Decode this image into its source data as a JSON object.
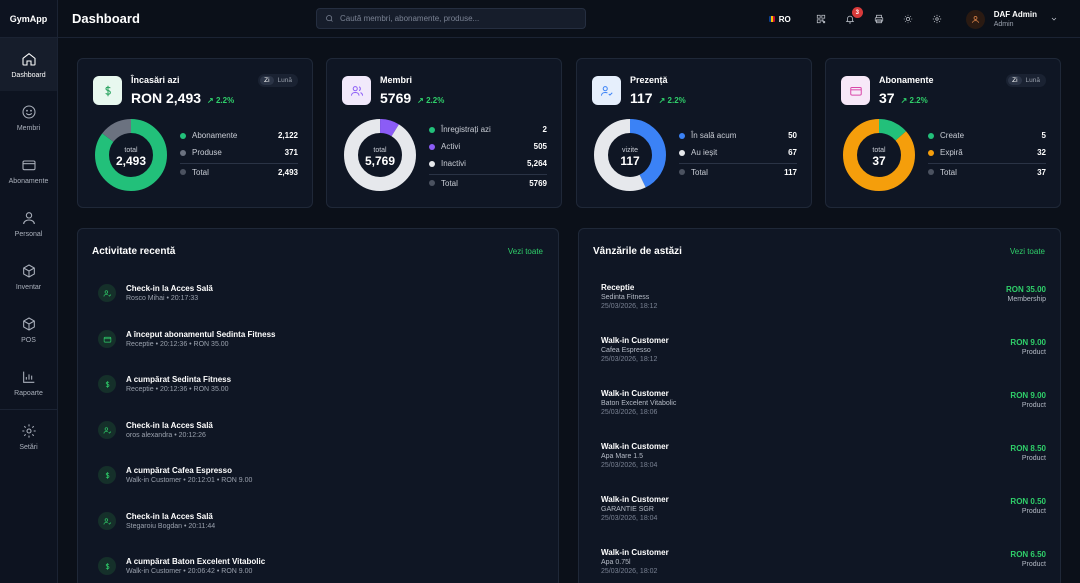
{
  "app": {
    "name": "GymApp"
  },
  "header": {
    "title": "Dashboard",
    "search_placeholder": "Caută membri, abonamente, produse...",
    "language": "RO",
    "notification_count": "3",
    "user_name": "DAF Admin",
    "user_role": "Admin"
  },
  "sidebar": {
    "items": [
      {
        "label": "Dashboard",
        "icon": "home-icon"
      },
      {
        "label": "Membri",
        "icon": "smile-icon"
      },
      {
        "label": "Abonamente",
        "icon": "card-icon"
      },
      {
        "label": "Personal",
        "icon": "user-icon"
      },
      {
        "label": "Inventar",
        "icon": "box-icon"
      },
      {
        "label": "POS",
        "icon": "box-icon"
      },
      {
        "label": "Rapoarte",
        "icon": "chart-icon"
      },
      {
        "label": "Setări",
        "icon": "gear-icon"
      }
    ]
  },
  "colors": {
    "accent": "#2fcf6a",
    "purple": "#8b5cf6",
    "blue": "#3b82f6",
    "orange": "#f59e0b",
    "gray": "#6b7280",
    "white": "#e6e8ec"
  },
  "cards": {
    "revenue": {
      "title": "Încasări azi",
      "value": "RON 2,493",
      "trend": "↗ 2.2%",
      "toggle": [
        "Zi",
        "Lună"
      ],
      "center_label": "total",
      "center_value": "2,493",
      "legend": [
        {
          "label": "Abonamente",
          "value": "2,122",
          "color": "#22c07a"
        },
        {
          "label": "Produse",
          "value": "371",
          "color": "#6b7280"
        }
      ],
      "total_label": "Total",
      "total_value": "2,493"
    },
    "members": {
      "title": "Membri",
      "value": "5769",
      "trend": "↗ 2.2%",
      "center_label": "total",
      "center_value": "5,769",
      "legend": [
        {
          "label": "Înregistrați azi",
          "value": "2",
          "color": "#22c07a"
        },
        {
          "label": "Activi",
          "value": "505",
          "color": "#8b5cf6"
        },
        {
          "label": "Inactivi",
          "value": "5,264",
          "color": "#e6e8ec"
        }
      ],
      "total_label": "Total",
      "total_value": "5769"
    },
    "attendance": {
      "title": "Prezență",
      "value": "117",
      "trend": "↗ 2.2%",
      "center_label": "vizite",
      "center_value": "117",
      "legend": [
        {
          "label": "În sală acum",
          "value": "50",
          "color": "#3b82f6"
        },
        {
          "label": "Au ieșit",
          "value": "67",
          "color": "#e6e8ec"
        }
      ],
      "total_label": "Total",
      "total_value": "117"
    },
    "subscriptions": {
      "title": "Abonamente",
      "value": "37",
      "trend": "↗ 2.2%",
      "toggle": [
        "Zi",
        "Lună"
      ],
      "center_label": "total",
      "center_value": "37",
      "legend": [
        {
          "label": "Create",
          "value": "5",
          "color": "#22c07a"
        },
        {
          "label": "Expiră",
          "value": "32",
          "color": "#f59e0b"
        }
      ],
      "total_label": "Total",
      "total_value": "37"
    }
  },
  "activity": {
    "title": "Activitate recentă",
    "link": "Vezi toate",
    "items": [
      {
        "title": "Check-in la Acces Sală",
        "sub": "Rosco Mihai • 20:17:33",
        "icon": "user-check-icon"
      },
      {
        "title": "A început abonamentul Sedinta Fitness",
        "sub": "Receptie • 20:12:36 • RON 35.00",
        "icon": "card-icon"
      },
      {
        "title": "A cumpărat Sedinta Fitness",
        "sub": "Receptie • 20:12:36 • RON 35.00",
        "icon": "dollar-icon"
      },
      {
        "title": "Check-in la Acces Sală",
        "sub": "oros alexandra • 20:12:26",
        "icon": "user-check-icon"
      },
      {
        "title": "A cumpărat Cafea Espresso",
        "sub": "Walk-in Customer • 20:12:01 • RON 9.00",
        "icon": "dollar-icon"
      },
      {
        "title": "Check-in la Acces Sală",
        "sub": "Stegaroiu Bogdan • 20:11:44",
        "icon": "user-check-icon"
      },
      {
        "title": "A cumpărat Baton Excelent Vitabolic",
        "sub": "Walk-in Customer • 20:06:42 • RON 9.00",
        "icon": "dollar-icon"
      }
    ]
  },
  "sales": {
    "title": "Vânzările de astăzi",
    "link": "Vezi toate",
    "items": [
      {
        "name": "Receptie",
        "desc": "Sedinta Fitness",
        "date": "25/03/2026, 18:12",
        "amount": "RON 35.00",
        "type": "Membership"
      },
      {
        "name": "Walk-in Customer",
        "desc": "Cafea Espresso",
        "date": "25/03/2026, 18:12",
        "amount": "RON 9.00",
        "type": "Product"
      },
      {
        "name": "Walk-in Customer",
        "desc": "Baton Excelent Vitabolic",
        "date": "25/03/2026, 18:06",
        "amount": "RON 9.00",
        "type": "Product"
      },
      {
        "name": "Walk-in Customer",
        "desc": "Apa Mare 1.5",
        "date": "25/03/2026, 18:04",
        "amount": "RON 8.50",
        "type": "Product"
      },
      {
        "name": "Walk-in Customer",
        "desc": "GARANTIE SGR",
        "date": "25/03/2026, 18:04",
        "amount": "RON 0.50",
        "type": "Product"
      },
      {
        "name": "Walk-in Customer",
        "desc": "Apa 0.75l",
        "date": "25/03/2026, 18:02",
        "amount": "RON 6.50",
        "type": "Product"
      }
    ]
  }
}
